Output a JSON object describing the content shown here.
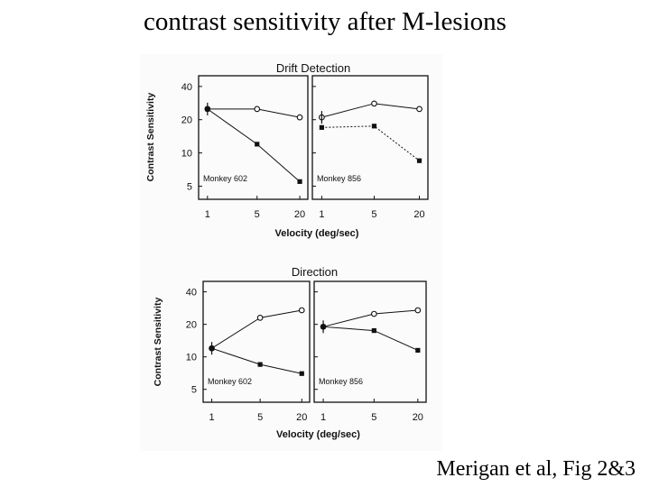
{
  "slide": {
    "title": "contrast sensitivity after M-lesions",
    "citation": "Merigan et al,  Fig 2&3"
  },
  "colors": {
    "ink": "#111111",
    "background": "#ffffff"
  },
  "chart_data": [
    {
      "type": "line",
      "title": "Drift Detection",
      "xlabel": "Velocity (deg/sec)",
      "ylabel": "Contrast Sensitivity",
      "x_scale": "log",
      "y_scale": "log",
      "y_ticks": [
        5,
        10,
        20,
        40
      ],
      "panels": [
        {
          "label": "Monkey 602",
          "x_ticks": [
            "1",
            "5",
            "20"
          ],
          "series": [
            {
              "marker": "open-circle",
              "x": [
                1,
                5,
                20
              ],
              "y": [
                25,
                25,
                21
              ]
            },
            {
              "marker": "filled-square",
              "x": [
                1,
                5,
                20
              ],
              "y": [
                25,
                12,
                5.5
              ]
            }
          ]
        },
        {
          "label": "Monkey 856",
          "x_ticks": [
            "1",
            "5",
            "20"
          ],
          "series": [
            {
              "marker": "open-circle",
              "x": [
                1,
                5,
                20
              ],
              "y": [
                21,
                28,
                25
              ]
            },
            {
              "marker": "filled-square",
              "x": [
                1,
                5,
                20
              ],
              "y": [
                17,
                17.5,
                8.5
              ]
            }
          ]
        }
      ]
    },
    {
      "type": "line",
      "title": "Direction",
      "xlabel": "Velocity (deg/sec)",
      "ylabel": "Contrast Sensitivity",
      "x_scale": "log",
      "y_scale": "log",
      "y_ticks": [
        5,
        10,
        20,
        40
      ],
      "panels": [
        {
          "label": "Monkey 602",
          "x_ticks": [
            "1",
            "5",
            "20"
          ],
          "series": [
            {
              "marker": "open-circle",
              "x": [
                1,
                5,
                20
              ],
              "y": [
                12,
                23,
                27
              ]
            },
            {
              "marker": "filled-square",
              "x": [
                1,
                5,
                20
              ],
              "y": [
                12,
                8.5,
                7
              ]
            }
          ]
        },
        {
          "label": "Monkey 856",
          "x_ticks": [
            "1",
            "5",
            "20"
          ],
          "series": [
            {
              "marker": "open-circle",
              "x": [
                1,
                5,
                20
              ],
              "y": [
                19,
                25,
                27
              ]
            },
            {
              "marker": "filled-square",
              "x": [
                1,
                5,
                20
              ],
              "y": [
                19,
                17.5,
                11.5
              ]
            }
          ]
        }
      ]
    }
  ]
}
